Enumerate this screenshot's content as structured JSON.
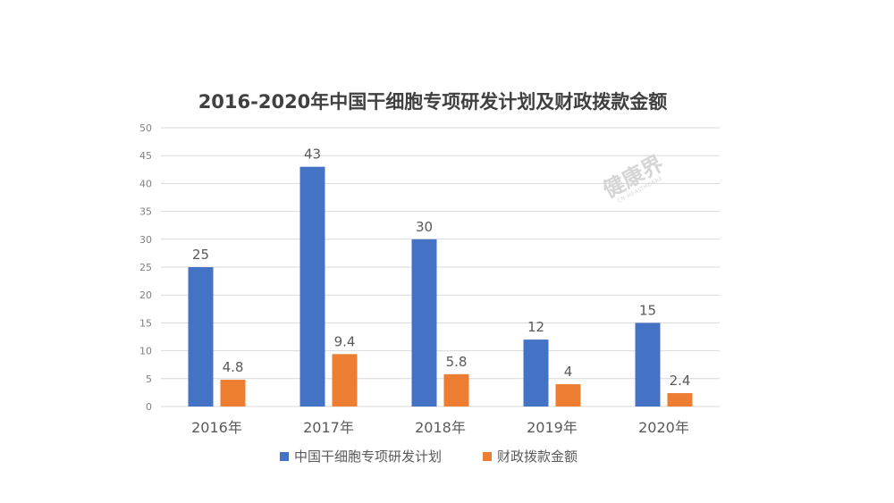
{
  "chart_data": {
    "type": "bar",
    "title": "2016-2020年中国干细胞专项研发计划及财政拨款金额",
    "categories": [
      "2016年",
      "2017年",
      "2018年",
      "2019年",
      "2020年"
    ],
    "series": [
      {
        "name": "中国干细胞专项研发计划",
        "values": [
          25,
          43,
          30,
          12,
          15
        ],
        "labels": [
          "25",
          "43",
          "30",
          "12",
          "15"
        ],
        "color": "#4472c4"
      },
      {
        "name": "财政拨款金额",
        "values": [
          4.8,
          9.4,
          5.8,
          4,
          2.4
        ],
        "labels": [
          "4.8",
          "9.4",
          "5.8",
          "4",
          "2.4"
        ],
        "color": "#ed7d31"
      }
    ],
    "ylim": [
      0,
      50
    ],
    "yticks": [
      "0",
      "5",
      "10",
      "15",
      "20",
      "25",
      "30",
      "35",
      "40",
      "45",
      "50"
    ],
    "xlabel": "",
    "ylabel": "",
    "grid": true,
    "legend_position": "bottom",
    "gridline_color": "#d9d9d9"
  },
  "watermark": {
    "text": "健康界",
    "subtext": "CN-HEALTHCARE",
    "color": "#d6d6d6"
  }
}
